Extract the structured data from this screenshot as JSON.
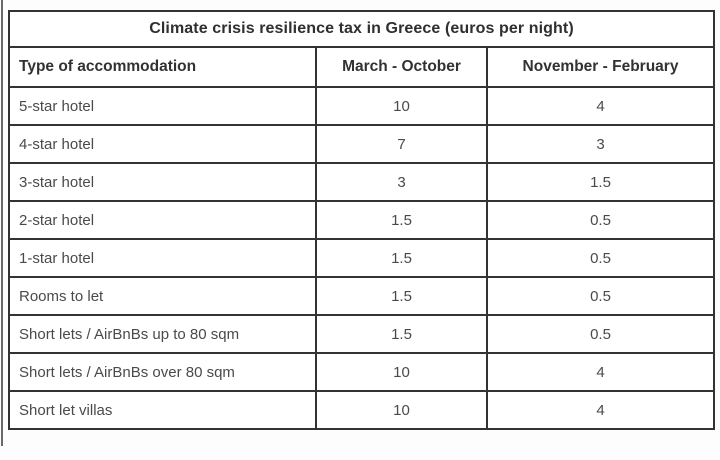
{
  "title": "Climate crisis resilience tax in Greece (euros per night)",
  "table": {
    "columns": [
      "Type of accommodation",
      "March - October",
      "November - February"
    ],
    "rows": [
      [
        "5-star hotel",
        "10",
        "4"
      ],
      [
        "4-star hotel",
        "7",
        "3"
      ],
      [
        "3-star hotel",
        "3",
        "1.5"
      ],
      [
        "2-star hotel",
        "1.5",
        "0.5"
      ],
      [
        "1-star hotel",
        "1.5",
        "0.5"
      ],
      [
        "Rooms to let",
        "1.5",
        "0.5"
      ],
      [
        "Short lets / AirBnBs up to 80 sqm",
        "1.5",
        "0.5"
      ],
      [
        "Short lets / AirBnBs over 80 sqm",
        "10",
        "4"
      ],
      [
        "Short let villas",
        "10",
        "4"
      ]
    ]
  },
  "colors": {
    "border": "#333333",
    "title_text": "#2f2f2f",
    "body_text": "#4a4a4a",
    "background": "#ffffff"
  }
}
